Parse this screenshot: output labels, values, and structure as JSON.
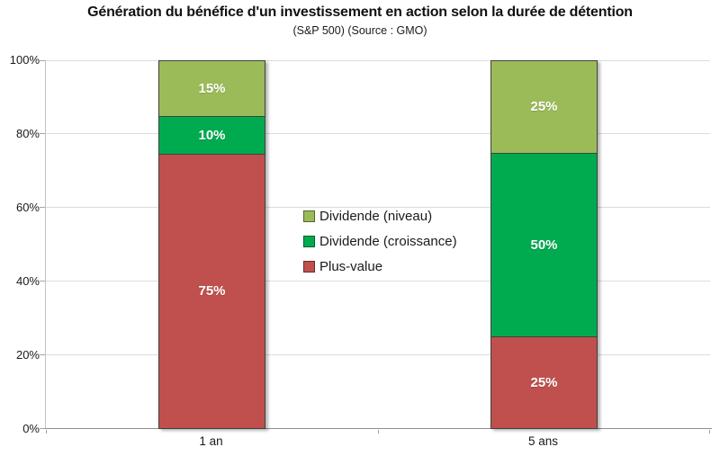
{
  "chart_data": {
    "type": "bar",
    "stacked": true,
    "title": "Génération du bénéfice d'un investissement en action selon la durée de détention",
    "subtitle": "(S&P 500) (Source : GMO)",
    "categories": [
      "1 an",
      "5 ans"
    ],
    "series": [
      {
        "name": "Plus-value",
        "color": "#c0504d",
        "values": [
          75,
          25
        ]
      },
      {
        "name": "Dividende (croissance)",
        "color": "#00ab50",
        "values": [
          10,
          50
        ]
      },
      {
        "name": "Dividende (niveau)",
        "color": "#9bbb59",
        "values": [
          15,
          25
        ]
      }
    ],
    "legend_order": [
      "Dividende (niveau)",
      "Dividende (croissance)",
      "Plus-value"
    ],
    "value_suffix": "%",
    "y_ticks": [
      0,
      20,
      40,
      60,
      80,
      100
    ],
    "y_tick_suffix": "%",
    "ylim": [
      0,
      100
    ],
    "xlabel": "",
    "ylabel": "",
    "grid": true,
    "legend_position": "middle-left-inside-plot"
  }
}
